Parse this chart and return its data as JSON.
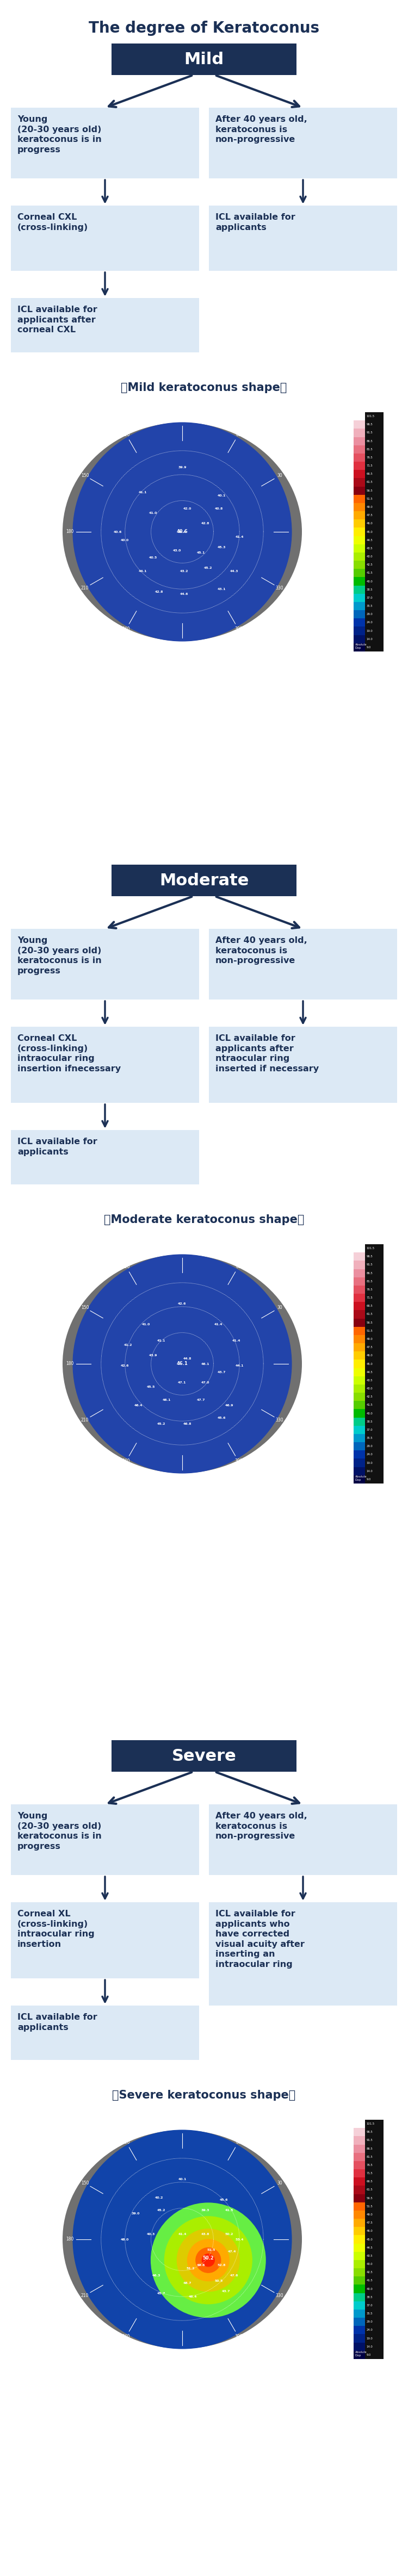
{
  "title": "The degree of Keratoconus",
  "bg_color": "#ffffff",
  "box_bg_light": "#dce9f5",
  "box_bg_dark": "#1b3055",
  "text_dark": "#1b3055",
  "text_white": "#ffffff",
  "sections": [
    {
      "header": "Mild",
      "left_col": [
        "Young\n(20-30 years old)\nkeratoconus is in\nprogress",
        "Corneal CXL\n(cross-linking)",
        "ICL available for\napplicants after\ncorneal CXL"
      ],
      "right_col": [
        "After 40 years old,\nkeratoconus is\nnon-progressive",
        "ICL available for\napplicants"
      ],
      "caption": "（Mild keratoconus shape）",
      "style": "mild",
      "center_val": "40.6",
      "data_labels": [
        "39.9",
        "41.1",
        "40.1",
        "40.6",
        "41.4",
        "40.8",
        "40.0",
        "41.0",
        "42.0",
        "42.8",
        "45.3",
        "41.4",
        "40.5",
        "43.0",
        "45.1",
        "44.1",
        "43.2",
        "45.2",
        "44.3",
        "42.8",
        "44.6",
        "43.1"
      ]
    },
    {
      "header": "Moderate",
      "left_col": [
        "Young\n(20-30 years old)\nkeratoconus is in\nprogress",
        "Corneal CXL\n(cross-linking)\nintraocular ring\ninsertion ifnecessary",
        "ICL available for\napplicants"
      ],
      "right_col": [
        "After 40 years old,\nkeratoconus is\nnon-progressive",
        "ICL available for\napplicants after\nntraocular ring\ninserted if necessary"
      ],
      "caption": "（Moderate keratoconus shape）",
      "style": "moderate",
      "center_val": "46.1",
      "data_labels": [
        "42.6",
        "41.0",
        "41.4",
        "41.2",
        "41.1",
        "41.4",
        "42.6",
        "43.9",
        "44.8",
        "46.1",
        "43.7",
        "44.1",
        "45.5",
        "47.1",
        "47.0",
        "46.4",
        "46.1",
        "47.7",
        "46.9",
        "45.2",
        "46.8",
        "45.6"
      ]
    },
    {
      "header": "Severe",
      "left_col": [
        "Young\n(20-30 years old)\nkeratoconus is in\nprogress",
        "Corneal XL\n(cross-linking)\nintraocular ring\ninsertion",
        "ICL available for\napplicants"
      ],
      "right_col": [
        "After 40 years old,\nkeratoconus is\nnon-progressive",
        "ICL available for\napplicants who\nhave corrected\nvisual acuity after\ninserting an\nintraocular ring"
      ],
      "caption": "（Severe keratoconus shape）",
      "style": "severe",
      "center_val": "50.2",
      "data_labels": [
        "40.1",
        "40.2",
        "45.6",
        "39.0",
        "45.2",
        "39.3",
        "41.5",
        "48.0",
        "40.3",
        "41.4",
        "43.8",
        "50.2",
        "53.4",
        "51.5",
        "47.4",
        "49.6",
        "51.2",
        "52.8",
        "46.3",
        "48.7",
        "50.5",
        "47.6",
        "45.7",
        "46.4",
        "43.7"
      ]
    }
  ],
  "colorbar_labels": [
    "101.5",
    "96.5",
    "91.5",
    "86.5",
    "81.5",
    "76.5",
    "71.5",
    "66.5",
    "61.5",
    "56.5",
    "51.5",
    "49.0",
    "47.5",
    "46.0",
    "45.0",
    "44.5",
    "43.5",
    "43.0",
    "42.5",
    "41.5",
    "40.0",
    "38.5",
    "37.0",
    "35.5",
    "29.0",
    "24.0",
    "19.0",
    "14.0",
    "9.0"
  ],
  "colorbar_colors": [
    "#ffffff",
    "#f5d0d8",
    "#f0b0bc",
    "#eb8fa0",
    "#e87080",
    "#e45060",
    "#e03040",
    "#cc1020",
    "#aa0a18",
    "#880010",
    "#ff6600",
    "#ff8800",
    "#ffaa00",
    "#ffcc00",
    "#ffee00",
    "#eeff00",
    "#ccff00",
    "#aaee00",
    "#88dd00",
    "#55cc00",
    "#00bb00",
    "#00cc88",
    "#00cccc",
    "#0099cc",
    "#0066bb",
    "#0033aa",
    "#002288",
    "#001166",
    "#000044"
  ]
}
